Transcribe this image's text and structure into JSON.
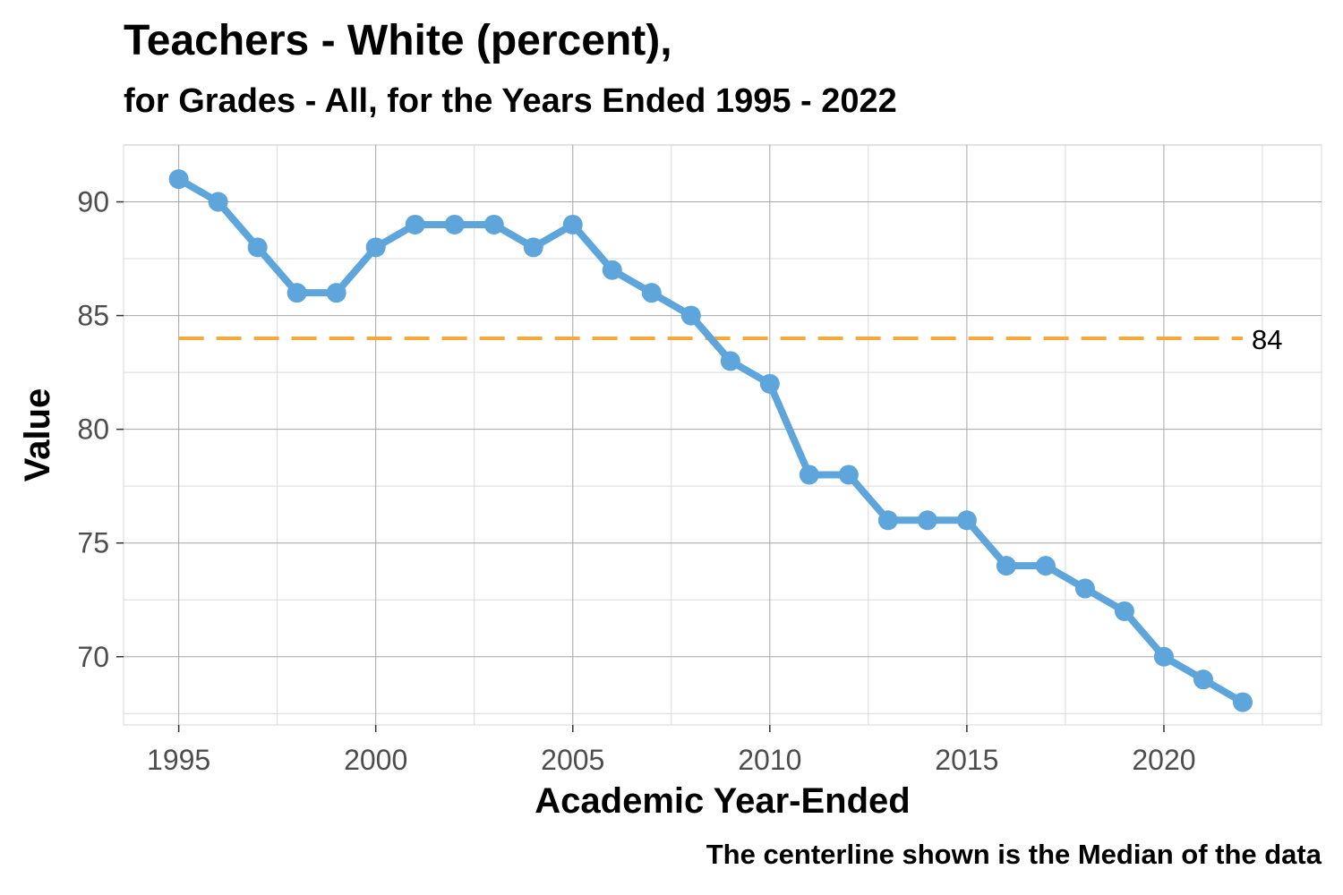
{
  "chart_data": {
    "type": "line",
    "title": "Teachers - White (percent),",
    "subtitle": "for Grades - All, for the Years Ended 1995  -  2022",
    "xlabel": "Academic Year-Ended",
    "ylabel": "Value",
    "caption": "The centerline shown is the Median of the data",
    "x_ticks": [
      "1995",
      "2000",
      "2005",
      "2010",
      "2015",
      "2020"
    ],
    "y_ticks": [
      "70",
      "75",
      "80",
      "85",
      "90"
    ],
    "xlim": [
      1993.6,
      2024.0
    ],
    "ylim": [
      67.0,
      92.5
    ],
    "grid": true,
    "series": [
      {
        "x": [
          1995,
          1996,
          1997,
          1998,
          1999,
          2000,
          2001,
          2002,
          2003,
          2004,
          2005,
          2006,
          2007,
          2008,
          2009,
          2010,
          2011,
          2012,
          2013,
          2014,
          2015,
          2016,
          2017,
          2018,
          2019,
          2020,
          2021,
          2022
        ],
        "values": [
          91,
          90,
          88,
          86,
          86,
          88,
          89,
          89,
          89,
          88,
          89,
          87,
          86,
          85,
          83,
          82,
          78,
          78,
          76,
          76,
          76,
          74,
          74,
          73,
          72,
          70,
          69,
          68
        ],
        "color": "#5DA5DA"
      }
    ],
    "centerline": {
      "value": 84,
      "label": "84",
      "color": "#F5A93A",
      "x_start": 1995,
      "x_end": 2022
    }
  }
}
